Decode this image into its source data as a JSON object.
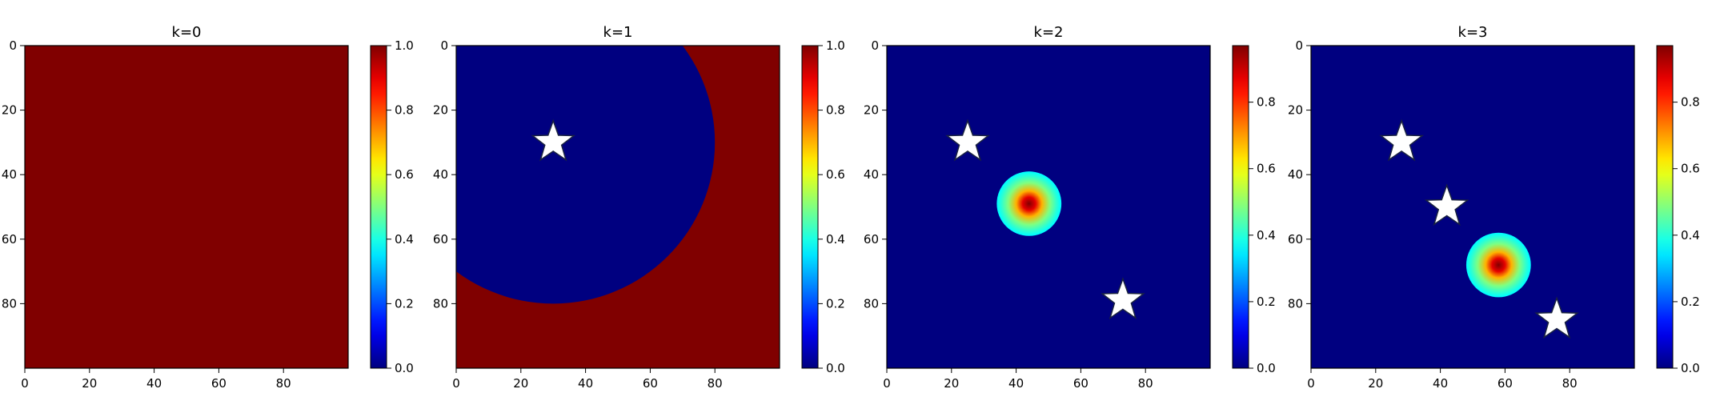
{
  "chart_data": [
    {
      "type": "heatmap",
      "title": "k=0",
      "map": "uniform",
      "value": 1.0,
      "x_ticks": [
        "0",
        "20",
        "40",
        "60",
        "80"
      ],
      "y_ticks": [
        "0",
        "20",
        "40",
        "60",
        "80"
      ],
      "xlim": [
        0,
        100
      ],
      "ylim": [
        100,
        0
      ],
      "colorbar": {
        "min": 0.0,
        "max": 1.0,
        "ticks": [
          "0.0",
          "0.2",
          "0.4",
          "0.6",
          "0.8",
          "1.0"
        ]
      },
      "stars": []
    },
    {
      "type": "heatmap",
      "title": "k=1",
      "map": "disk-mask",
      "inside_value": 0.0,
      "outside_value": 1.0,
      "disk": {
        "center_x": 30,
        "center_y": 30,
        "radius": 50
      },
      "x_ticks": [
        "0",
        "20",
        "40",
        "60",
        "80"
      ],
      "y_ticks": [
        "0",
        "20",
        "40",
        "60",
        "80"
      ],
      "xlim": [
        0,
        100
      ],
      "ylim": [
        100,
        0
      ],
      "colorbar": {
        "min": 0.0,
        "max": 1.0,
        "ticks": [
          "0.0",
          "0.2",
          "0.4",
          "0.6",
          "0.8",
          "1.0"
        ]
      },
      "stars": [
        {
          "x": 30,
          "y": 30
        }
      ]
    },
    {
      "type": "heatmap",
      "title": "k=2",
      "map": "gaussian-blob",
      "blob": {
        "center_x": 44,
        "center_y": 49,
        "radius": 10,
        "peak": 0.97
      },
      "x_ticks": [
        "0",
        "20",
        "40",
        "60",
        "80"
      ],
      "y_ticks": [
        "0",
        "20",
        "40",
        "60",
        "80"
      ],
      "xlim": [
        0,
        100
      ],
      "ylim": [
        100,
        0
      ],
      "colorbar": {
        "min": 0.0,
        "max": 0.97,
        "ticks": [
          "0.0",
          "0.2",
          "0.4",
          "0.6",
          "0.8"
        ]
      },
      "stars": [
        {
          "x": 25,
          "y": 30
        },
        {
          "x": 73,
          "y": 79
        }
      ]
    },
    {
      "type": "heatmap",
      "title": "k=3",
      "map": "gaussian-blob",
      "blob": {
        "center_x": 58,
        "center_y": 68,
        "radius": 10,
        "peak": 0.97
      },
      "x_ticks": [
        "0",
        "20",
        "40",
        "60",
        "80"
      ],
      "y_ticks": [
        "0",
        "20",
        "40",
        "60",
        "80"
      ],
      "xlim": [
        0,
        100
      ],
      "ylim": [
        100,
        0
      ],
      "colorbar": {
        "min": 0.0,
        "max": 0.97,
        "ticks": [
          "0.0",
          "0.2",
          "0.4",
          "0.6",
          "0.8"
        ]
      },
      "stars": [
        {
          "x": 28,
          "y": 30
        },
        {
          "x": 42,
          "y": 50
        },
        {
          "x": 76,
          "y": 85
        }
      ]
    }
  ]
}
